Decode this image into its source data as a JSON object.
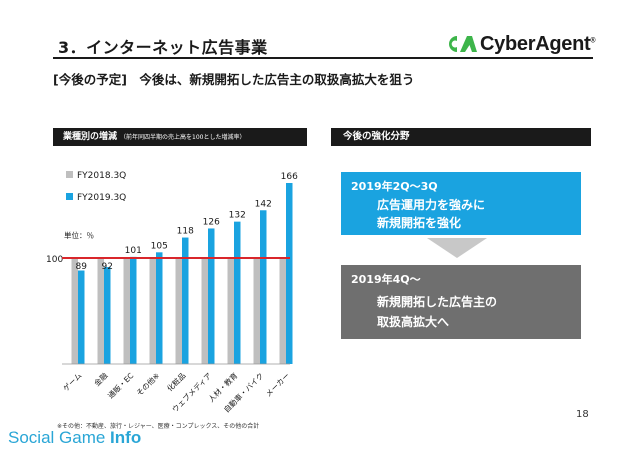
{
  "header": {
    "section_title": "3．インターネット広告事業",
    "logo_text": "CyberAgent",
    "logo_suffix": "®",
    "subtitle": "[今後の予定]　今後は、新規開拓した広告主の取扱高拡大を狙う"
  },
  "chart_panel": {
    "header_label": "業種別の増減",
    "header_note": "（前年同四半期の売上高を100とした増減率）",
    "unit_label": "単位：％",
    "baseline_label": "100"
  },
  "right_panel": {
    "header_label": "今後の強化分野",
    "box1": {
      "period": "2019年2Q～3Q",
      "line1": "広告運用力を強みに",
      "line2": "新規開拓を強化"
    },
    "box2": {
      "period": "2019年4Q～",
      "line1": "新規開拓した広告主の",
      "line2": "取扱高拡大へ"
    }
  },
  "footnote": "※その他：不動産、旅行・レジャー、医療・コンプレックス、その他の合計",
  "page_number": "18",
  "watermark": {
    "part1": "Social Game ",
    "part2": "Info"
  },
  "colors": {
    "fy2018": "#bfbfbf",
    "fy2019": "#1aa3e0",
    "baseline": "#d9262b",
    "accent_box": "#1aa3e0",
    "grey_box": "#6f6f6f",
    "logo_green": "#3db54a"
  },
  "chart_data": {
    "type": "bar",
    "categories": [
      "ゲーム",
      "金融",
      "通販・EC",
      "その他※",
      "化粧品",
      "ウェブメディア",
      "人材・教育",
      "自動車・バイク",
      "メーカー"
    ],
    "series": [
      {
        "name": "FY2018.3Q",
        "values": [
          100,
          100,
          100,
          100,
          100,
          100,
          100,
          100,
          100
        ]
      },
      {
        "name": "FY2019.3Q",
        "values": [
          89,
          92,
          101,
          105,
          118,
          126,
          132,
          142,
          166
        ]
      }
    ],
    "data_labels": [
      "89",
      "92",
      "101",
      "105",
      "118",
      "126",
      "132",
      "142",
      "166"
    ],
    "ylim": [
      50,
      170
    ],
    "legend": "top-left",
    "grid": false
  }
}
